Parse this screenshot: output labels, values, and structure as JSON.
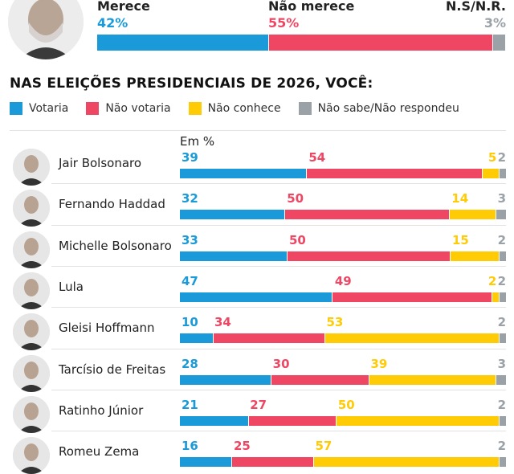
{
  "colors": {
    "votaria": "#1a9ad9",
    "nao_votaria": "#ef4763",
    "nao_conhece": "#ffcb05",
    "ns": "#9aa1a7"
  },
  "summary": {
    "labels": {
      "merece": "Merece",
      "nao_merece": "Não merece",
      "ns": "N.S/N.R."
    },
    "values": {
      "merece": "42%",
      "nao_merece": "55%",
      "ns": "3%"
    },
    "shares": {
      "merece": 42,
      "nao_merece": 55,
      "ns": 3
    }
  },
  "section_title": "NAS ELEIÇÕES PRESIDENCIAIS DE 2026, VOCÊ:",
  "legend": [
    "Votaria",
    "Não votaria",
    "Não conhece",
    "Não sabe/Não respondeu"
  ],
  "unit_label": "Em %",
  "chart_data": {
    "type": "bar",
    "stacked": true,
    "orientation": "horizontal",
    "categories": [
      "Jair Bolsonaro",
      "Fernando Haddad",
      "Michelle Bolsonaro",
      "Lula",
      "Gleisi Hoffmann",
      "Tarcísio de Freitas",
      "Ratinho Júnior",
      "Romeu Zema"
    ],
    "series": [
      {
        "name": "Votaria",
        "values": [
          39,
          32,
          33,
          47,
          10,
          28,
          21,
          16
        ]
      },
      {
        "name": "Não votaria",
        "values": [
          54,
          50,
          50,
          49,
          34,
          30,
          27,
          25
        ]
      },
      {
        "name": "Não conhece",
        "values": [
          5,
          14,
          15,
          2,
          53,
          39,
          50,
          57
        ]
      },
      {
        "name": "Não sabe/Não respondeu",
        "values": [
          2,
          3,
          2,
          2,
          2,
          3,
          2,
          2
        ]
      }
    ],
    "xlim": [
      0,
      100
    ],
    "ylabel": "Em %"
  }
}
